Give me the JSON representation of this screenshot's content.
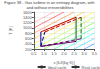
{
  "chart_data": {
    "type": "line",
    "title": "Figure 38 - Gas turbine in an entropy diagram, with and without irreversibilities",
    "xlabel": "s [kJ/(kg K)]",
    "ylabel": "T [K]",
    "xlim": [
      0.5,
      3.5
    ],
    "ylim": [
      200,
      1600
    ],
    "xticks": [
      0.5,
      {
        "value": 1.0,
        "label": "1.0"
      },
      1.5,
      {
        "value": 2.0,
        "label": "2.0"
      },
      2.5,
      {
        "value": 3.0,
        "label": "3.0"
      },
      3.5
    ],
    "yticks": [
      200,
      400,
      600,
      800,
      1000,
      1200,
      1400,
      1600
    ],
    "grid": true,
    "legend": "lower right",
    "series": [
      {
        "color": "#ff8888",
        "x": [
          0.5,
          1.5
        ],
        "values": [
          1200,
          1600
        ]
      },
      {
        "color": "#ff0000",
        "x": [
          0.5,
          2.0
        ],
        "values": [
          1000,
          1600
        ]
      },
      {
        "color": "#ff6600",
        "x": [
          0.5,
          2.5
        ],
        "values": [
          800,
          1600
        ]
      },
      {
        "color": "#ffaa00",
        "x": [
          0.5,
          3.0
        ],
        "values": [
          600,
          1600
        ]
      },
      {
        "color": "#ffee00",
        "x": [
          0.5,
          3.5
        ],
        "values": [
          400,
          1600
        ]
      },
      {
        "color": "#aaff00",
        "x": [
          0.5,
          3.5
        ],
        "values": [
          200,
          1400
        ]
      },
      {
        "color": "#44ff00",
        "x": [
          1.0,
          3.5
        ],
        "values": [
          200,
          1200
        ]
      },
      {
        "color": "#00ff88",
        "x": [
          1.5,
          3.5
        ],
        "values": [
          200,
          1000
        ]
      },
      {
        "color": "#00ffee",
        "x": [
          2.0,
          3.5
        ],
        "values": [
          200,
          800
        ]
      },
      {
        "color": "#00ccff",
        "x": [
          2.5,
          3.5
        ],
        "values": [
          200,
          600
        ]
      },
      {
        "color": "#0066ff",
        "x": [
          3.0,
          3.5
        ],
        "values": [
          200,
          400
        ]
      },
      {
        "name": "Ideal cycle",
        "color": "#333333",
        "line_style": "solid",
        "colors": [
          "#000099",
          "#cc0000",
          "#006600",
          "#660066"
        ],
        "x": [
          0.85,
          0.85,
          2.6,
          2.6,
          0.85
        ],
        "values": [
          300,
          850,
          1400,
          490,
          300
        ]
      },
      {
        "name": "Real cycle",
        "color": "#333333",
        "line_style": "dashed",
        "colors": [
          "#000099",
          "#cc0000",
          "#006600",
          "#660066"
        ],
        "x": [
          0.85,
          1.05,
          2.85,
          2.85,
          0.85
        ],
        "values": [
          300,
          850,
          1400,
          590,
          300
        ]
      }
    ]
  }
}
